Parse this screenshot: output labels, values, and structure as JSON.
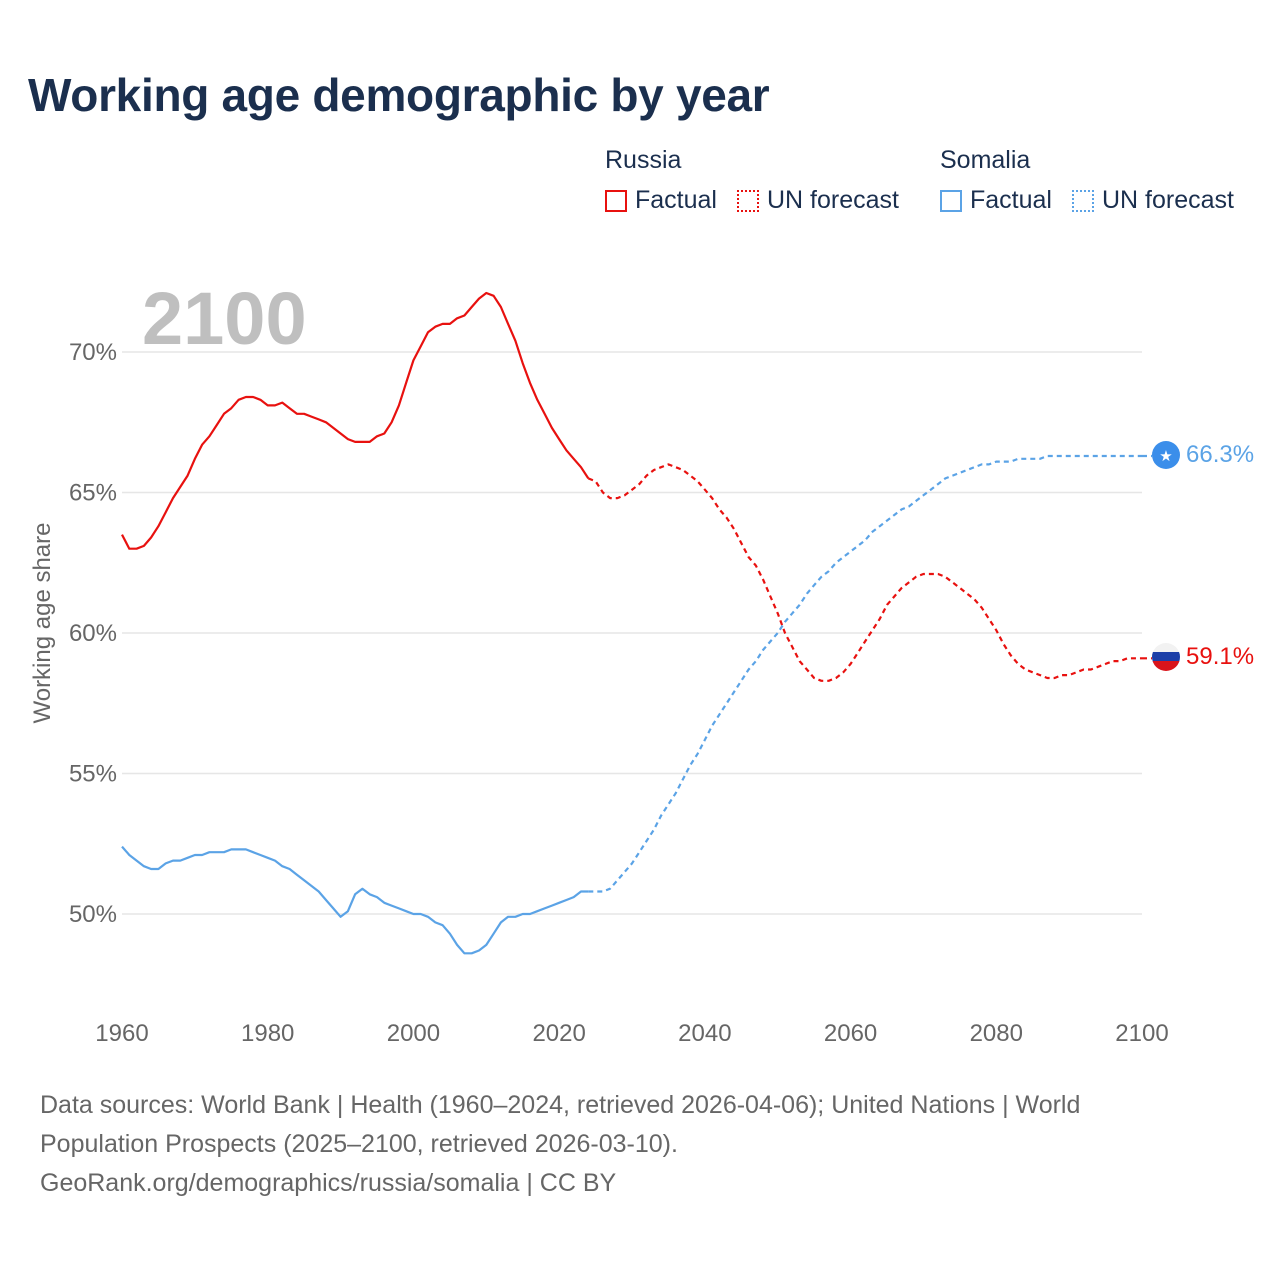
{
  "title": "Working age demographic by year",
  "legend": {
    "groups": [
      {
        "name": "Russia",
        "factual_label": "Factual",
        "forecast_label": "UN forecast",
        "color": "#e8110f"
      },
      {
        "name": "Somalia",
        "factual_label": "Factual",
        "forecast_label": "UN forecast",
        "color": "#5ba3e6"
      }
    ]
  },
  "year_watermark": "2100",
  "end_labels": {
    "somalia": "66.3%",
    "russia": "59.1%"
  },
  "colors": {
    "russia": "#e8110f",
    "somalia": "#5ba3e6",
    "somalia_marker": "#3b8eea",
    "title": "#1b2f4e",
    "grid": "#e6e6e6",
    "axis_text": "#666666",
    "watermark": "#bfbfbf"
  },
  "footer": {
    "line1": "Data sources: World Bank | Health (1960–2024, retrieved 2026-04-06); United Nations | World",
    "line2": "Population Prospects (2025–2100, retrieved 2026-03-10).",
    "line3": "GeoRank.org/demographics/russia/somalia | CC BY"
  },
  "chart_data": {
    "type": "line",
    "title": "Working age demographic by year",
    "xlabel": "",
    "ylabel": "Working age share",
    "xlim": [
      1960,
      2100
    ],
    "ylim": [
      47,
      73
    ],
    "x_ticks": [
      1960,
      1980,
      2000,
      2020,
      2040,
      2060,
      2080,
      2100
    ],
    "y_ticks": [
      50,
      55,
      60,
      65,
      70
    ],
    "y_tick_labels": [
      "50%",
      "55%",
      "60%",
      "65%",
      "70%"
    ],
    "series": [
      {
        "name": "Russia",
        "kind": "factual",
        "x": [
          1960,
          1961,
          1962,
          1963,
          1964,
          1965,
          1966,
          1967,
          1968,
          1969,
          1970,
          1971,
          1972,
          1973,
          1974,
          1975,
          1976,
          1977,
          1978,
          1979,
          1980,
          1981,
          1982,
          1983,
          1984,
          1985,
          1986,
          1987,
          1988,
          1989,
          1990,
          1991,
          1992,
          1993,
          1994,
          1995,
          1996,
          1997,
          1998,
          1999,
          2000,
          2001,
          2002,
          2003,
          2004,
          2005,
          2006,
          2007,
          2008,
          2009,
          2010,
          2011,
          2012,
          2013,
          2014,
          2015,
          2016,
          2017,
          2018,
          2019,
          2020,
          2021,
          2022,
          2023,
          2024
        ],
        "values": [
          63.5,
          63.0,
          63.0,
          63.1,
          63.4,
          63.8,
          64.3,
          64.8,
          65.2,
          65.6,
          66.2,
          66.7,
          67.0,
          67.4,
          67.8,
          68.0,
          68.3,
          68.4,
          68.4,
          68.3,
          68.1,
          68.1,
          68.2,
          68.0,
          67.8,
          67.8,
          67.7,
          67.6,
          67.5,
          67.3,
          67.1,
          66.9,
          66.8,
          66.8,
          66.8,
          67.0,
          67.1,
          67.5,
          68.1,
          68.9,
          69.7,
          70.2,
          70.7,
          70.9,
          71.0,
          71.0,
          71.2,
          71.3,
          71.6,
          71.9,
          72.1,
          72.0,
          71.6,
          71.0,
          70.4,
          69.6,
          68.9,
          68.3,
          67.8,
          67.3,
          66.9,
          66.5,
          66.2,
          65.9,
          65.5
        ]
      },
      {
        "name": "Russia",
        "kind": "UN forecast",
        "x": [
          2024,
          2025,
          2026,
          2027,
          2028,
          2029,
          2030,
          2031,
          2032,
          2033,
          2034,
          2035,
          2036,
          2037,
          2038,
          2039,
          2040,
          2041,
          2042,
          2043,
          2044,
          2045,
          2046,
          2047,
          2048,
          2049,
          2050,
          2051,
          2052,
          2053,
          2054,
          2055,
          2056,
          2057,
          2058,
          2059,
          2060,
          2061,
          2062,
          2063,
          2064,
          2065,
          2066,
          2067,
          2068,
          2069,
          2070,
          2071,
          2072,
          2073,
          2074,
          2075,
          2076,
          2077,
          2078,
          2079,
          2080,
          2081,
          2082,
          2083,
          2084,
          2085,
          2086,
          2087,
          2088,
          2089,
          2090,
          2091,
          2092,
          2093,
          2094,
          2095,
          2096,
          2097,
          2098,
          2099,
          2100
        ],
        "values": [
          65.5,
          65.4,
          65.0,
          64.8,
          64.8,
          64.9,
          65.1,
          65.3,
          65.6,
          65.8,
          65.9,
          66.0,
          65.9,
          65.8,
          65.6,
          65.4,
          65.1,
          64.8,
          64.4,
          64.1,
          63.7,
          63.2,
          62.7,
          62.4,
          61.9,
          61.3,
          60.7,
          60.0,
          59.5,
          59.0,
          58.7,
          58.4,
          58.3,
          58.3,
          58.4,
          58.6,
          58.9,
          59.3,
          59.7,
          60.1,
          60.5,
          61.0,
          61.3,
          61.6,
          61.8,
          62.0,
          62.1,
          62.1,
          62.1,
          62.0,
          61.8,
          61.6,
          61.4,
          61.2,
          60.9,
          60.5,
          60.1,
          59.6,
          59.2,
          58.9,
          58.7,
          58.6,
          58.5,
          58.4,
          58.4,
          58.5,
          58.5,
          58.6,
          58.7,
          58.7,
          58.8,
          58.9,
          59.0,
          59.0,
          59.1,
          59.1,
          59.1
        ]
      },
      {
        "name": "Somalia",
        "kind": "factual",
        "x": [
          1960,
          1961,
          1962,
          1963,
          1964,
          1965,
          1966,
          1967,
          1968,
          1969,
          1970,
          1971,
          1972,
          1973,
          1974,
          1975,
          1976,
          1977,
          1978,
          1979,
          1980,
          1981,
          1982,
          1983,
          1984,
          1985,
          1986,
          1987,
          1988,
          1989,
          1990,
          1991,
          1992,
          1993,
          1994,
          1995,
          1996,
          1997,
          1998,
          1999,
          2000,
          2001,
          2002,
          2003,
          2004,
          2005,
          2006,
          2007,
          2008,
          2009,
          2010,
          2011,
          2012,
          2013,
          2014,
          2015,
          2016,
          2017,
          2018,
          2019,
          2020,
          2021,
          2022,
          2023,
          2024
        ],
        "values": [
          52.4,
          52.1,
          51.9,
          51.7,
          51.6,
          51.6,
          51.8,
          51.9,
          51.9,
          52.0,
          52.1,
          52.1,
          52.2,
          52.2,
          52.2,
          52.3,
          52.3,
          52.3,
          52.2,
          52.1,
          52.0,
          51.9,
          51.7,
          51.6,
          51.4,
          51.2,
          51.0,
          50.8,
          50.5,
          50.2,
          49.9,
          50.1,
          50.7,
          50.9,
          50.7,
          50.6,
          50.4,
          50.3,
          50.2,
          50.1,
          50.0,
          50.0,
          49.9,
          49.7,
          49.6,
          49.3,
          48.9,
          48.6,
          48.6,
          48.7,
          48.9,
          49.3,
          49.7,
          49.9,
          49.9,
          50.0,
          50.0,
          50.1,
          50.2,
          50.3,
          50.4,
          50.5,
          50.6,
          50.8,
          50.8
        ]
      },
      {
        "name": "Somalia",
        "kind": "UN forecast",
        "x": [
          2024,
          2025,
          2026,
          2027,
          2028,
          2029,
          2030,
          2031,
          2032,
          2033,
          2034,
          2035,
          2036,
          2037,
          2038,
          2039,
          2040,
          2041,
          2042,
          2043,
          2044,
          2045,
          2046,
          2047,
          2048,
          2049,
          2050,
          2051,
          2052,
          2053,
          2054,
          2055,
          2056,
          2057,
          2058,
          2059,
          2060,
          2061,
          2062,
          2063,
          2064,
          2065,
          2066,
          2067,
          2068,
          2069,
          2070,
          2071,
          2072,
          2073,
          2074,
          2075,
          2076,
          2077,
          2078,
          2079,
          2080,
          2081,
          2082,
          2083,
          2084,
          2085,
          2086,
          2087,
          2088,
          2089,
          2090,
          2091,
          2092,
          2093,
          2094,
          2095,
          2096,
          2097,
          2098,
          2099,
          2100
        ],
        "values": [
          50.8,
          50.8,
          50.8,
          50.9,
          51.2,
          51.5,
          51.8,
          52.2,
          52.6,
          53.0,
          53.5,
          53.9,
          54.3,
          54.8,
          55.3,
          55.7,
          56.2,
          56.7,
          57.1,
          57.5,
          57.9,
          58.3,
          58.7,
          59.0,
          59.4,
          59.7,
          60.0,
          60.4,
          60.7,
          61.0,
          61.4,
          61.7,
          62.0,
          62.2,
          62.5,
          62.7,
          62.9,
          63.1,
          63.3,
          63.6,
          63.8,
          64.0,
          64.2,
          64.4,
          64.5,
          64.7,
          64.9,
          65.1,
          65.3,
          65.5,
          65.6,
          65.7,
          65.8,
          65.9,
          66.0,
          66.0,
          66.1,
          66.1,
          66.1,
          66.2,
          66.2,
          66.2,
          66.2,
          66.3,
          66.3,
          66.3,
          66.3,
          66.3,
          66.3,
          66.3,
          66.3,
          66.3,
          66.3,
          66.3,
          66.3,
          66.3,
          66.3
        ]
      }
    ]
  }
}
